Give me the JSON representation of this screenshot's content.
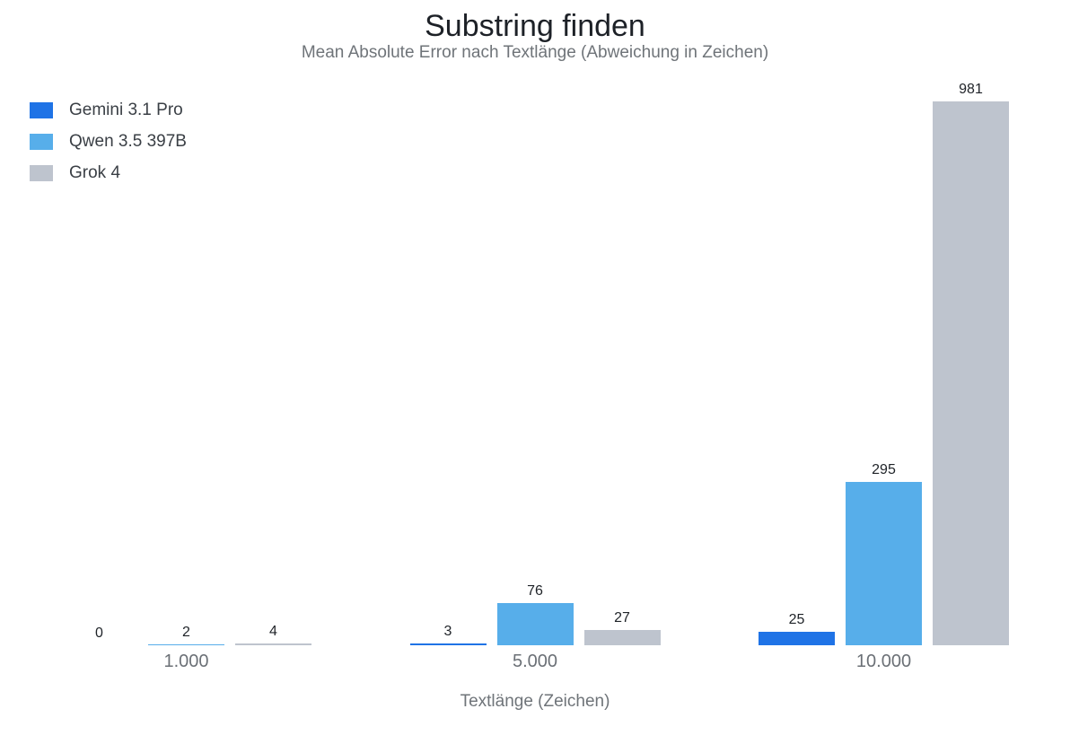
{
  "page": {
    "background": "#ffffff"
  },
  "chart_data": {
    "type": "bar",
    "title": "Substring finden",
    "subtitle": "Mean Absolute Error nach Textlänge (Abweichung in Zeichen)",
    "categories": [
      "1.000",
      "5.000",
      "10.000"
    ],
    "series": [
      {
        "name": "Gemini 3.1 Pro",
        "color": "#1f73e6",
        "values": [
          0,
          3,
          25
        ]
      },
      {
        "name": "Qwen 3.5 397B",
        "color": "#57aeea",
        "values": [
          2,
          76,
          295
        ]
      },
      {
        "name": "Grok 4",
        "color": "#bec4ce",
        "values": [
          4,
          27,
          981
        ]
      }
    ],
    "xlabel": "Textlänge (Zeichen)",
    "ylabel": "",
    "ylim": [
      0,
      981
    ],
    "grid": false,
    "axes_visible": false,
    "legend_position": "top-left",
    "value_labels": true
  }
}
